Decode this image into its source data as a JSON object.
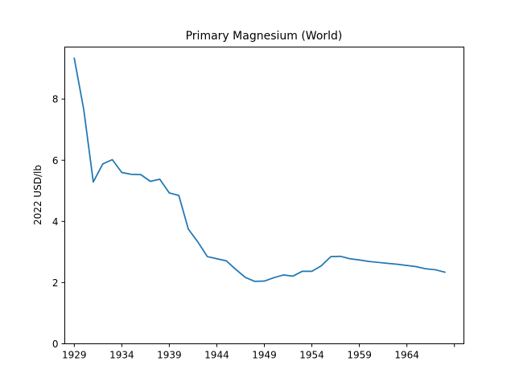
{
  "chart_data": {
    "type": "line",
    "title": "Primary Magnesium (World)",
    "xlabel": "",
    "ylabel": "2022 USD/lb",
    "xlim": [
      1928,
      1970
    ],
    "ylim": [
      0,
      9.7
    ],
    "xticks": [
      1929,
      1934,
      1939,
      1944,
      1949,
      1954,
      1959,
      1964,
      1969
    ],
    "xtick_labels": [
      "1929",
      "1934",
      "1939",
      "1944",
      "1949",
      "1954",
      "1959",
      "1964",
      ""
    ],
    "yticks": [
      0,
      2,
      4,
      6,
      8
    ],
    "ytick_labels": [
      "0",
      "2",
      "4",
      "6",
      "8"
    ],
    "grid": false,
    "color": "#1f77b4",
    "series": [
      {
        "x": [
          1929,
          1930,
          1931,
          1932,
          1933,
          1934,
          1935,
          1936,
          1937,
          1938,
          1939,
          1940,
          1941,
          1942,
          1943,
          1944,
          1945,
          1946,
          1947,
          1948,
          1949,
          1950,
          1951,
          1952,
          1953,
          1954,
          1955,
          1956,
          1957,
          1958,
          1959,
          1960,
          1961,
          1962,
          1963,
          1964,
          1965,
          1966,
          1967,
          1968
        ],
        "values": [
          9.33,
          7.65,
          5.29,
          5.88,
          6.02,
          5.6,
          5.54,
          5.53,
          5.31,
          5.38,
          4.93,
          4.85,
          3.75,
          3.33,
          2.85,
          2.78,
          2.71,
          2.43,
          2.17,
          2.04,
          2.05,
          2.16,
          2.25,
          2.21,
          2.37,
          2.37,
          2.55,
          2.85,
          2.86,
          2.78,
          2.74,
          2.69,
          2.66,
          2.63,
          2.6,
          2.56,
          2.52,
          2.45,
          2.42,
          2.34
        ]
      }
    ]
  }
}
